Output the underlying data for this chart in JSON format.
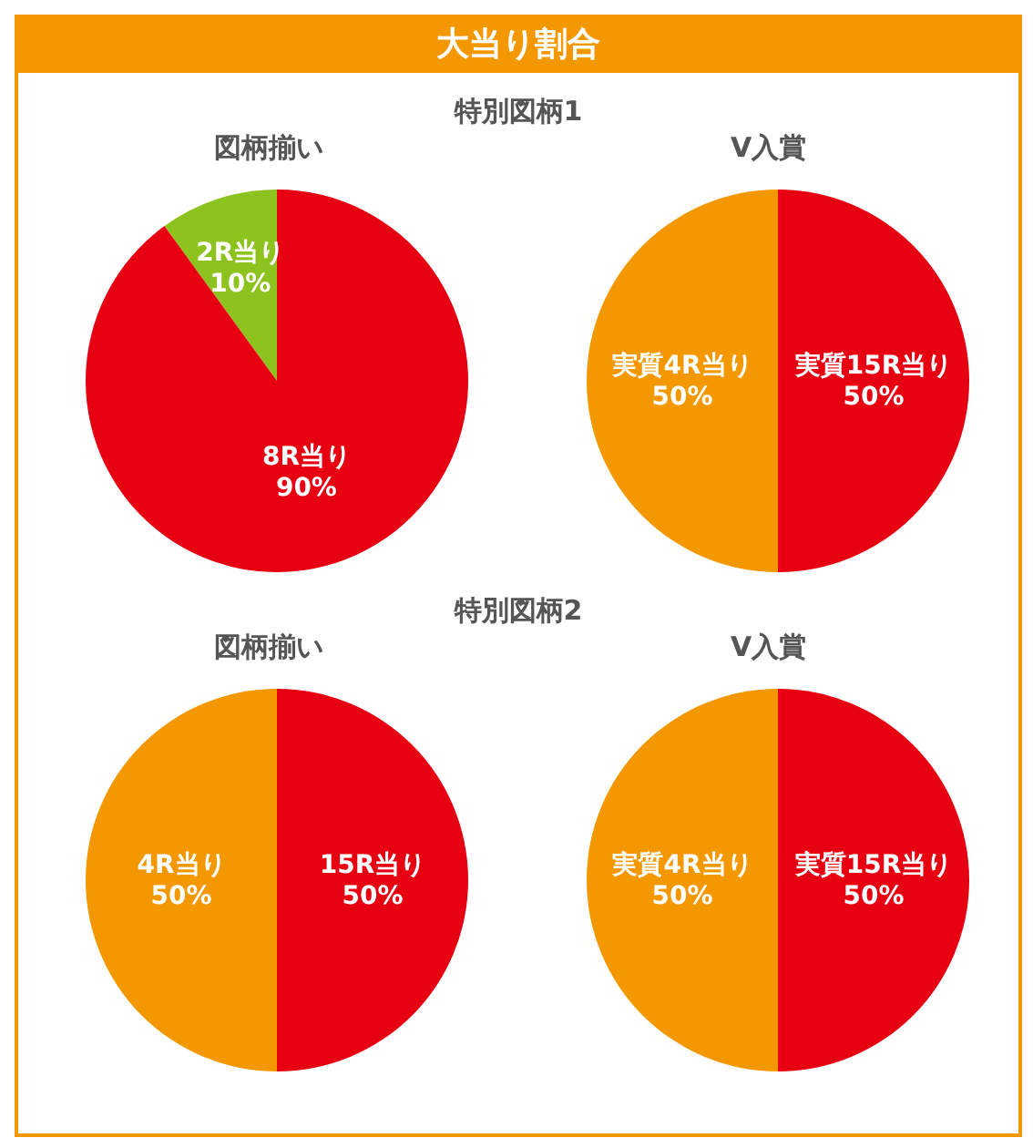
{
  "chart_data": [
    {
      "type": "other",
      "title": "大当り割合"
    },
    {
      "type": "pie",
      "title": "図柄揃い",
      "annotations": [
        "特別図柄1"
      ],
      "categories": [
        "2R当り",
        "8R当り"
      ],
      "values": [
        10,
        90
      ],
      "value_labels": [
        "10%",
        "90%"
      ],
      "colors": [
        "#8dc21f",
        "#e60012"
      ]
    },
    {
      "type": "pie",
      "title": "V入賞",
      "categories": [
        "実質4R当り",
        "実質15R当り"
      ],
      "values": [
        50,
        50
      ],
      "value_labels": [
        "50%",
        "50%"
      ],
      "colors": [
        "#f39800",
        "#e60012"
      ]
    },
    {
      "type": "pie",
      "title": "図柄揃い",
      "annotations": [
        "特別図柄2"
      ],
      "categories": [
        "4R当り",
        "15R当り"
      ],
      "values": [
        50,
        50
      ],
      "value_labels": [
        "50%",
        "50%"
      ],
      "colors": [
        "#f39800",
        "#e60012"
      ]
    },
    {
      "type": "pie",
      "title": "V入賞",
      "categories": [
        "実質4R当り",
        "実質15R当り"
      ],
      "values": [
        50,
        50
      ],
      "value_labels": [
        "50%",
        "50%"
      ],
      "colors": [
        "#f39800",
        "#e60012"
      ]
    }
  ]
}
